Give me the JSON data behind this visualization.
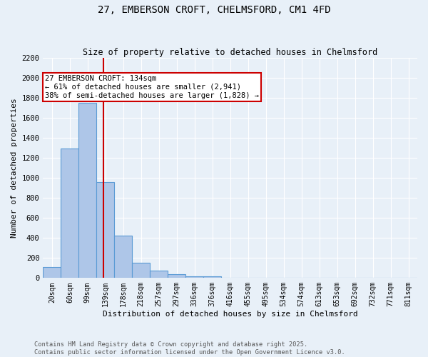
{
  "title_line1": "27, EMBERSON CROFT, CHELMSFORD, CM1 4FD",
  "title_line2": "Size of property relative to detached houses in Chelmsford",
  "xlabel": "Distribution of detached houses by size in Chelmsford",
  "ylabel": "Number of detached properties",
  "footnote": "Contains HM Land Registry data © Crown copyright and database right 2025.\nContains public sector information licensed under the Open Government Licence v3.0.",
  "bar_labels": [
    "20sqm",
    "60sqm",
    "99sqm",
    "139sqm",
    "178sqm",
    "218sqm",
    "257sqm",
    "297sqm",
    "336sqm",
    "376sqm",
    "416sqm",
    "455sqm",
    "495sqm",
    "534sqm",
    "574sqm",
    "613sqm",
    "653sqm",
    "692sqm",
    "732sqm",
    "771sqm",
    "811sqm"
  ],
  "bar_values": [
    110,
    1290,
    1750,
    960,
    420,
    150,
    75,
    35,
    20,
    15,
    0,
    0,
    0,
    0,
    0,
    0,
    0,
    0,
    0,
    0,
    0
  ],
  "bar_color": "#aec6e8",
  "bar_edge_color": "#5b9bd5",
  "bg_color": "#e8f0f8",
  "grid_color": "#ffffff",
  "property_line_color": "#cc0000",
  "annotation_text": "27 EMBERSON CROFT: 134sqm\n← 61% of detached houses are smaller (2,941)\n38% of semi-detached houses are larger (1,828) →",
  "annotation_box_color": "#ffffff",
  "annotation_box_edge": "#cc0000",
  "ylim_max": 2200,
  "yticks": [
    0,
    200,
    400,
    600,
    800,
    1000,
    1200,
    1400,
    1600,
    1800,
    2000,
    2200
  ]
}
